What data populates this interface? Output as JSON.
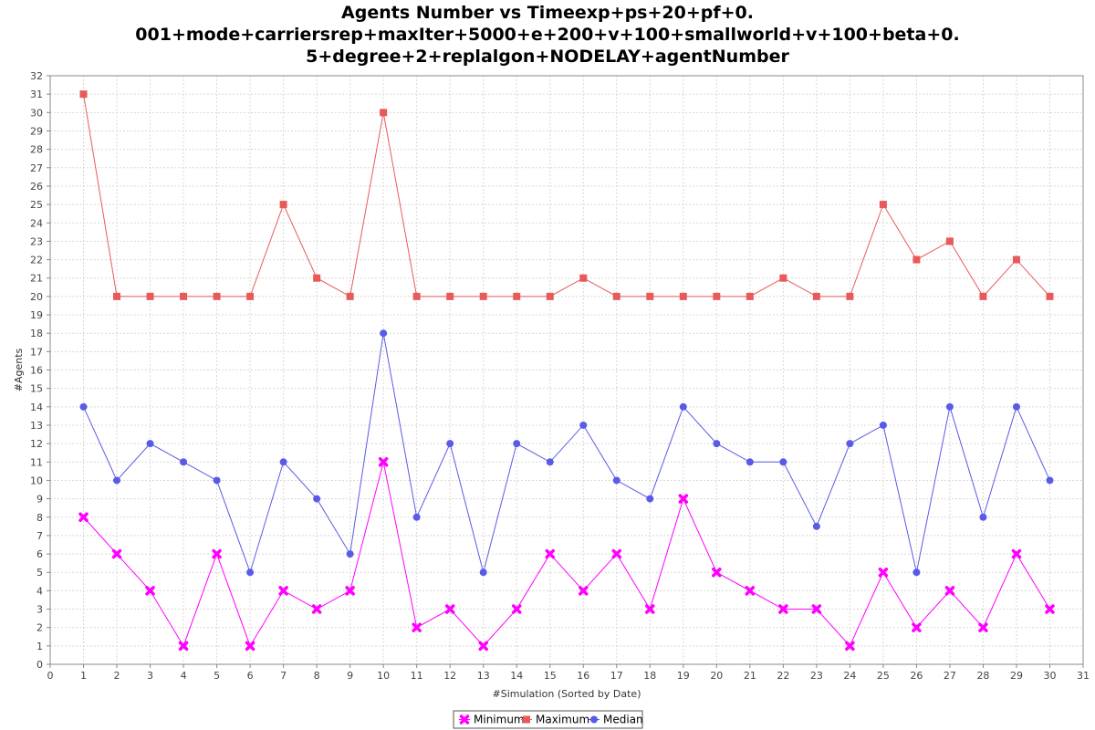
{
  "chart_data": {
    "type": "line",
    "title_lines": [
      "Agents Number vs Timeexp+ps+20+pf+0.",
      "001+mode+carriersrep+maxIter+5000+e+200+v+100+smallworld+v+100+beta+0.",
      "5+degree+2+replalgon+NODELAY+agentNumber"
    ],
    "xlabel": "#Simulation (Sorted by Date)",
    "ylabel": "#Agents",
    "xlim": [
      0,
      31
    ],
    "ylim": [
      0,
      32
    ],
    "grid": true,
    "legend_position": "bottom-center",
    "x": [
      1,
      2,
      3,
      4,
      5,
      6,
      7,
      8,
      9,
      10,
      11,
      12,
      13,
      14,
      15,
      16,
      17,
      18,
      19,
      20,
      21,
      22,
      23,
      24,
      25,
      26,
      27,
      28,
      29,
      30
    ],
    "series": [
      {
        "name": "Minimum",
        "color": "#ff00ff",
        "marker": "x",
        "values": [
          8,
          6,
          4,
          1,
          6,
          1,
          4,
          3,
          4,
          11,
          2,
          3,
          1,
          3,
          6,
          4,
          6,
          3,
          9,
          5,
          4,
          3,
          3,
          1,
          5,
          2,
          4,
          2,
          6,
          3
        ]
      },
      {
        "name": "Maximum",
        "color": "#e85a5a",
        "marker": "square",
        "values": [
          31,
          20,
          20,
          20,
          20,
          20,
          25,
          21,
          20,
          30,
          20,
          20,
          20,
          20,
          20,
          21,
          20,
          20,
          20,
          20,
          20,
          21,
          20,
          20,
          25,
          22,
          23,
          20,
          22,
          20
        ]
      },
      {
        "name": "Median",
        "color": "#5a5ae8",
        "marker": "circle",
        "values": [
          14,
          10,
          12,
          11,
          10,
          5,
          11,
          9,
          6,
          18,
          8,
          12,
          5,
          12,
          11,
          13,
          10,
          9,
          14,
          12,
          11,
          11,
          7.5,
          12,
          13,
          5,
          14,
          8,
          14,
          10
        ]
      }
    ]
  }
}
